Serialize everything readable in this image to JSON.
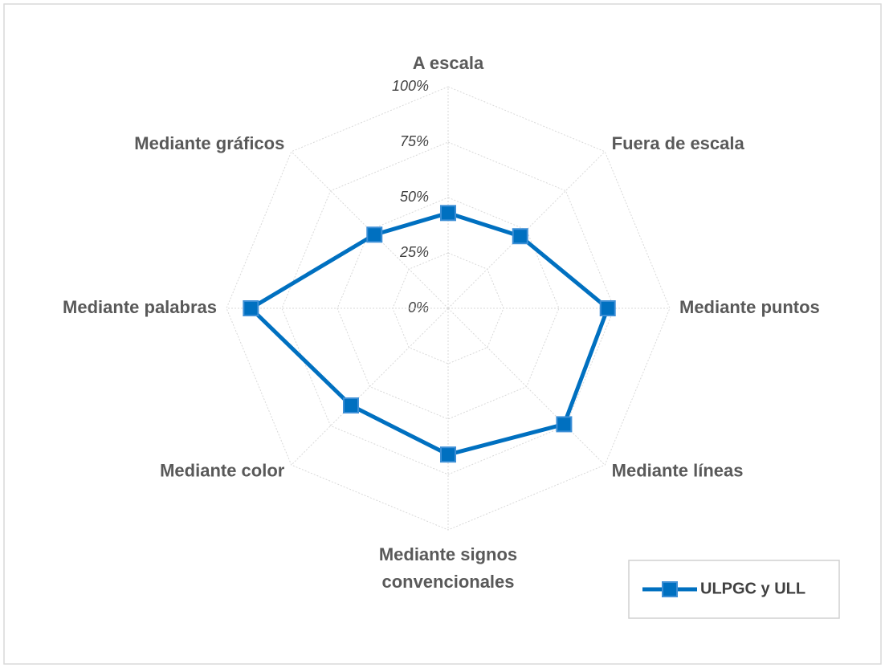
{
  "chart_data": {
    "type": "radar",
    "categories": [
      "A escala",
      "Fuera de escala",
      "Mediante puntos",
      "Mediante líneas",
      "Mediante signos convencionales",
      "Mediante color",
      "Mediante palabras",
      "Mediante gráficos"
    ],
    "series": [
      {
        "name": "ULPGC y ULL",
        "color": "#0070c0",
        "values": [
          43,
          46,
          72,
          74,
          66,
          62,
          89,
          47
        ]
      }
    ],
    "ylim": [
      0,
      100
    ],
    "yticks": [
      {
        "value": 0,
        "label": "0%"
      },
      {
        "value": 25,
        "label": "25%"
      },
      {
        "value": 50,
        "label": "50%"
      },
      {
        "value": 75,
        "label": "75%"
      },
      {
        "value": 100,
        "label": "100%"
      }
    ],
    "grid": true,
    "legend": "lower right"
  }
}
